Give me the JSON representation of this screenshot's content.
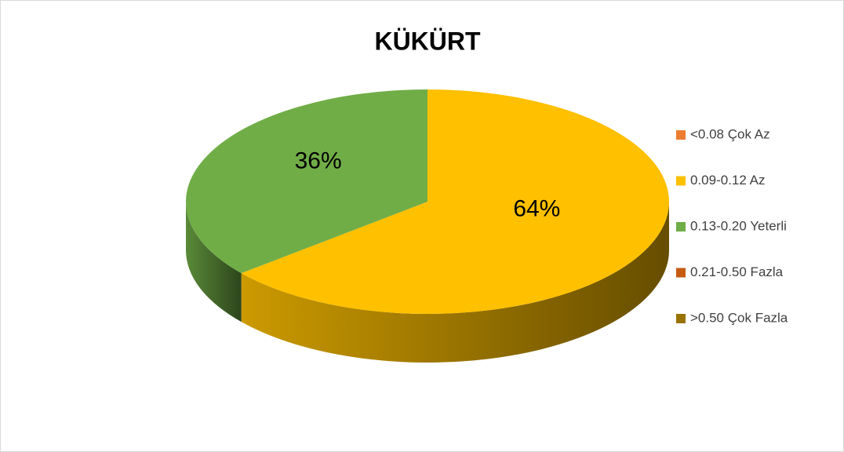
{
  "chart_data": {
    "type": "pie",
    "title": "KÜKÜRT",
    "categories": [
      "<0.08 Çok Az",
      "0.09-0.12 Az",
      "0.13-0.20 Yeterli",
      "0.21-0.50 Fazla",
      ">0.50 Çok Fazla"
    ],
    "values": [
      0,
      64,
      36,
      0,
      0
    ],
    "value_labels": [
      null,
      "64%",
      "36%",
      null,
      null
    ],
    "colors": [
      "#ED7D31",
      "#FFC000",
      "#70AD47",
      "#C55A11",
      "#997300"
    ],
    "legend": "right"
  }
}
